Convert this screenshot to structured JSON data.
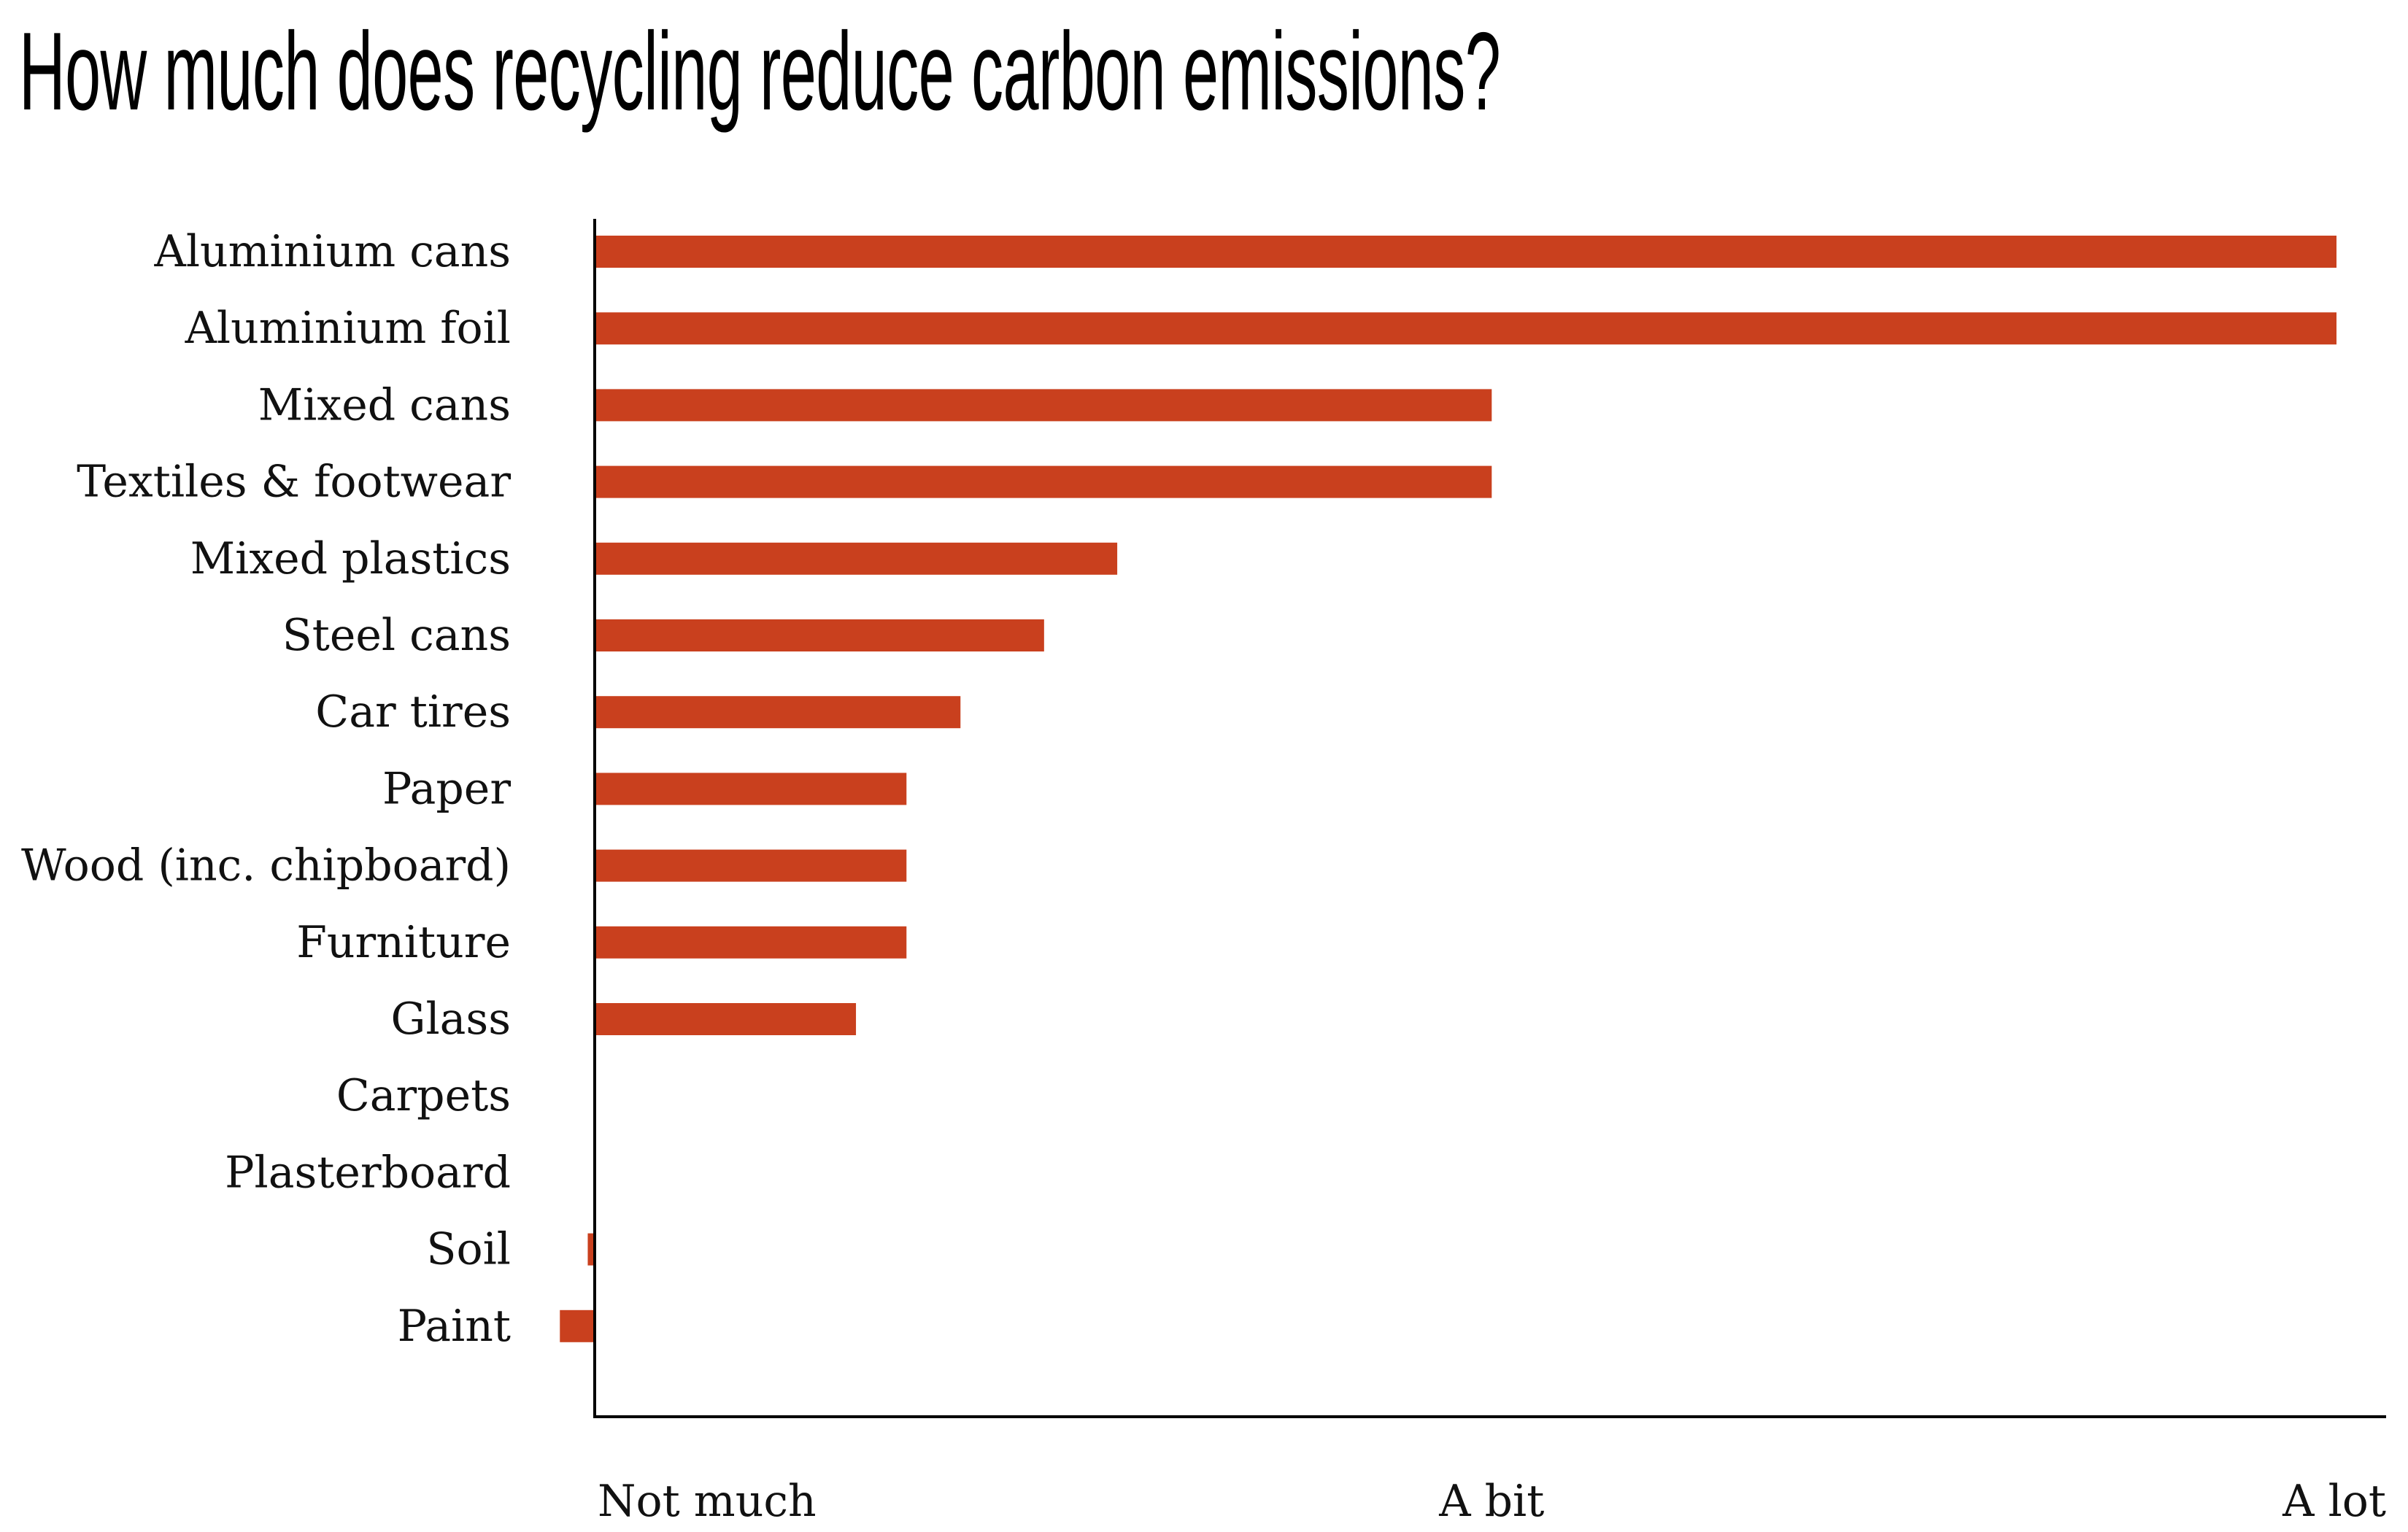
{
  "title": "How much does recycling reduce carbon emissions?",
  "chart_data": {
    "type": "bar",
    "orientation": "horizontal",
    "title": "How much does recycling reduce carbon emissions?",
    "categories": [
      "Aluminium cans",
      "Aluminium foil",
      "Mixed cans",
      "Textiles & footwear",
      "Mixed plastics",
      "Steel cans",
      "Car tires",
      "Paper",
      "Wood (inc. chipboard)",
      "Furniture",
      "Glass",
      "Carpets",
      "Plasterboard",
      "Soil",
      "Paint"
    ],
    "values": [
      1.0,
      1.0,
      0.515,
      0.515,
      0.3,
      0.258,
      0.21,
      0.179,
      0.179,
      0.179,
      0.15,
      0.0,
      0.0,
      -0.004,
      -0.02
    ],
    "xlim": [
      0,
      1
    ],
    "x_tick_values": [
      0,
      0.515,
      1.0
    ],
    "x_tick_labels": [
      "Not much",
      "A bit",
      "A lot"
    ],
    "bar_color": "#c9401e",
    "grid": false,
    "legend": "none"
  }
}
